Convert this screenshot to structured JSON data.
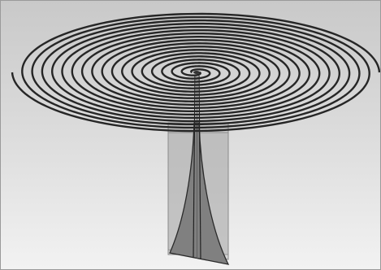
{
  "scene": {
    "subject": "spiral-antenna-model",
    "colors": {
      "background_top": "#c8c8c8",
      "background_bottom": "#f4f4f4",
      "spiral_stroke": "#262626",
      "box_face": "#b4b4b4",
      "taper_fill": "#7e7e7e"
    },
    "spiral_turns": 9
  }
}
